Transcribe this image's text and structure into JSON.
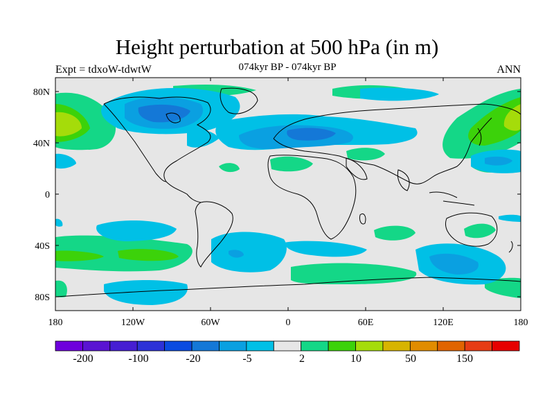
{
  "title": "Height perturbation at 500 hPa (in m)",
  "subtitle": "074kyr BP - 074kyr BP",
  "expt_label": "Expt = tdxoW-tdwtW",
  "season": "ANN",
  "map": {
    "lat_ticks": [
      "80N",
      "40N",
      "0",
      "40S",
      "80S"
    ],
    "lon_ticks": [
      "180",
      "120W",
      "60W",
      "0",
      "60E",
      "120E",
      "180"
    ],
    "background_color": "#e6e6e6"
  },
  "colorbar": {
    "colors": [
      "#6e00dc",
      "#5a14d2",
      "#461ed2",
      "#2d32d7",
      "#0a4be1",
      "#1478d7",
      "#0aa0e1",
      "#00c0e6",
      "#e6e6e6",
      "#14d787",
      "#3cd20a",
      "#a5dc0a",
      "#d7b400",
      "#e18c00",
      "#e16400",
      "#e63c14",
      "#e60000"
    ],
    "labels": [
      "-200",
      "-100",
      "-20",
      "-5",
      "2",
      "10",
      "50",
      "150"
    ]
  },
  "chart_data": {
    "type": "heatmap",
    "title": "Height perturbation at 500 hPa (in m)",
    "subtitle": "074kyr BP - 074kyr BP",
    "variable": "Height perturbation at 500 hPa",
    "units": "m",
    "x_range": [
      -180,
      180
    ],
    "y_range": [
      -90,
      90
    ],
    "colorbar_labels": [
      "-200",
      "-100",
      "-20",
      "-5",
      "2",
      "10",
      "50",
      "150"
    ]
  }
}
